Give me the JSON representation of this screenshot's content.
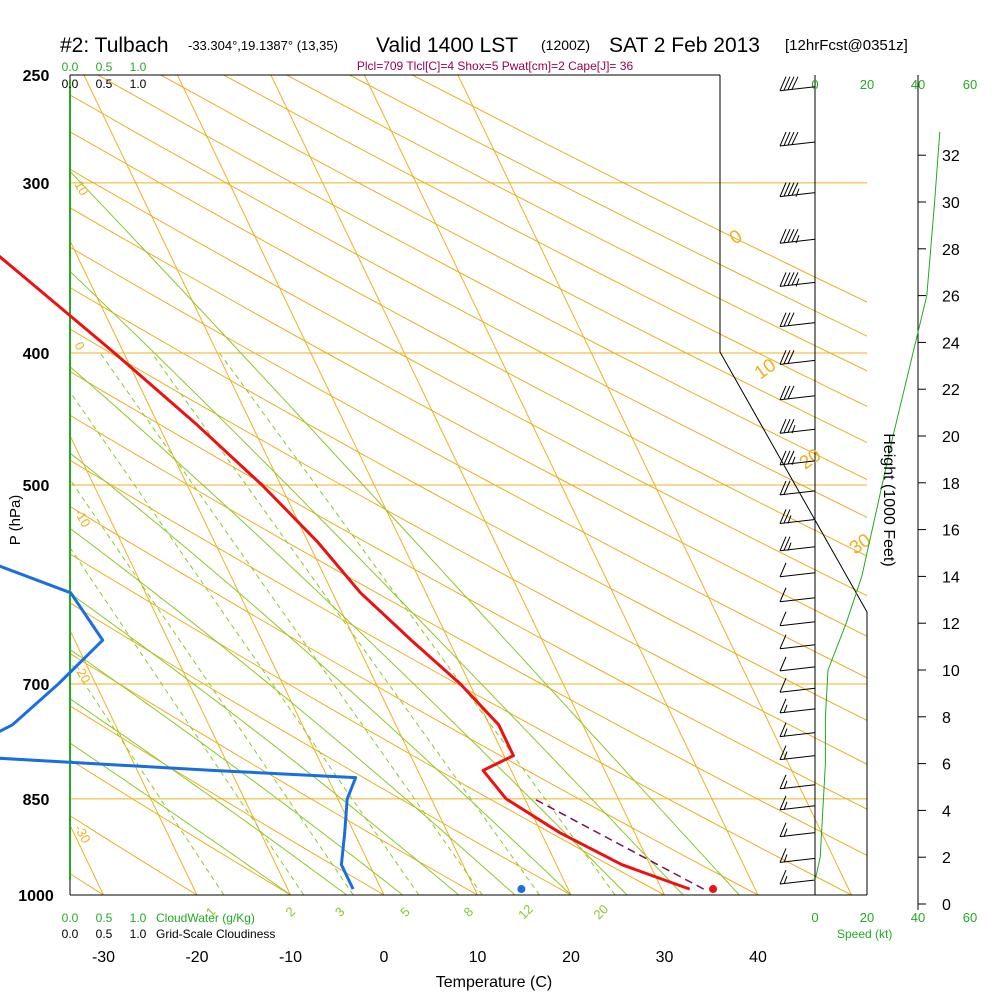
{
  "header": {
    "station": "#2: Tulbach",
    "coords": "-33.304°,19.1387° (13,35)",
    "valid": "Valid 1400 LST",
    "utc": "(1200Z)",
    "date": "SAT 2 Feb 2013",
    "forecast": "[12hrFcst@0351z]",
    "indices": "Plcl=709 Tlcl[C]=4 Shox=5 Pwat[cm]=2 Cape[J]= 36"
  },
  "colors": {
    "temperature": "#ee1111",
    "dewpoint": "#1a6fe0",
    "isotherm": "#f0b020",
    "dry_adiabat": "#e8b020",
    "moist_adiabat": "#8cc828",
    "mixing_ratio": "#8cc828",
    "cloud_scale": "#22aa22",
    "parcel": "#7a1050",
    "header_sub": "#990055"
  },
  "chart_data": {
    "type": "skew-t",
    "xlabel": "Temperature (C)",
    "ylabel": "P (hPa)",
    "right_label": "Height (1000 Feet)",
    "x_ticks": [
      -30,
      -20,
      -10,
      0,
      10,
      20,
      30,
      40
    ],
    "pressure_ticks": [
      250,
      300,
      400,
      500,
      700,
      850,
      1000
    ],
    "height_ticks": [
      0,
      2,
      4,
      6,
      8,
      10,
      12,
      14,
      16,
      18,
      20,
      22,
      24,
      26,
      28,
      30,
      32
    ],
    "temperature_profile": [
      {
        "p": 255,
        "t": -22
      },
      {
        "p": 300,
        "t": -14
      },
      {
        "p": 350,
        "t": -7
      },
      {
        "p": 400,
        "t": -1
      },
      {
        "p": 450,
        "t": 4
      },
      {
        "p": 500,
        "t": 8
      },
      {
        "p": 550,
        "t": 11
      },
      {
        "p": 600,
        "t": 13
      },
      {
        "p": 650,
        "t": 16
      },
      {
        "p": 700,
        "t": 19
      },
      {
        "p": 750,
        "t": 21
      },
      {
        "p": 790,
        "t": 21
      },
      {
        "p": 810,
        "t": 17
      },
      {
        "p": 850,
        "t": 18
      },
      {
        "p": 900,
        "t": 22
      },
      {
        "p": 950,
        "t": 27
      },
      {
        "p": 990,
        "t": 33
      }
    ],
    "dewpoint_profile": [
      {
        "p": 255,
        "t": -42
      },
      {
        "p": 300,
        "t": -45
      },
      {
        "p": 350,
        "t": -50
      },
      {
        "p": 400,
        "t": -57
      },
      {
        "p": 450,
        "t": -56
      },
      {
        "p": 500,
        "t": -44
      },
      {
        "p": 550,
        "t": -30
      },
      {
        "p": 600,
        "t": -18
      },
      {
        "p": 650,
        "t": -17
      },
      {
        "p": 700,
        "t": -24
      },
      {
        "p": 750,
        "t": -31
      },
      {
        "p": 790,
        "t": -39
      },
      {
        "p": 810,
        "t": -12
      },
      {
        "p": 820,
        "t": 3
      },
      {
        "p": 850,
        "t": 1
      },
      {
        "p": 900,
        "t": -1
      },
      {
        "p": 950,
        "t": -3
      },
      {
        "p": 990,
        "t": -3
      }
    ],
    "surface_temperature": 35.5,
    "surface_dewpoint": 15,
    "surface_pressure": 990,
    "parcel_path": [
      {
        "p": 990,
        "t": 34.5
      },
      {
        "p": 850,
        "t": 21
      }
    ],
    "cloud_axis_top": [
      "0.0",
      "0.5",
      "1.0"
    ],
    "cloud_axis_bottom": [
      "0.0",
      "0.5",
      "1.0"
    ],
    "cloudwater_label": "CloudWater (g/Kg)",
    "cloudiness_label": "Grid-Scale Cloudiness",
    "speed_label": "Speed (kt)",
    "speed_ticks": [
      "0",
      "20",
      "40",
      "60"
    ],
    "mixing_ratio_labels": [
      "1",
      "2",
      "3",
      "5",
      "8",
      "12",
      "20"
    ],
    "isotherm_labels": [
      "10",
      "0",
      "-10",
      "-20",
      "-30"
    ],
    "moist_labels": [
      "0",
      "10",
      "20",
      "30"
    ],
    "wind_speed_profile": [
      {
        "h": 1,
        "s": 0
      },
      {
        "h": 2,
        "s": 2
      },
      {
        "h": 4,
        "s": 3
      },
      {
        "h": 6,
        "s": 4
      },
      {
        "h": 8,
        "s": 4
      },
      {
        "h": 10,
        "s": 5
      },
      {
        "h": 12,
        "s": 12
      },
      {
        "h": 14,
        "s": 18
      },
      {
        "h": 20,
        "s": 30
      },
      {
        "h": 26,
        "s": 43
      },
      {
        "h": 30,
        "s": 46
      },
      {
        "h": 33,
        "s": 48
      }
    ],
    "wind_barbs": [
      {
        "p": 255,
        "spd": 40
      },
      {
        "p": 280,
        "spd": 40
      },
      {
        "p": 305,
        "spd": 35
      },
      {
        "p": 330,
        "spd": 35
      },
      {
        "p": 355,
        "spd": 35
      },
      {
        "p": 380,
        "spd": 30
      },
      {
        "p": 405,
        "spd": 30
      },
      {
        "p": 430,
        "spd": 30
      },
      {
        "p": 455,
        "spd": 25
      },
      {
        "p": 480,
        "spd": 25
      },
      {
        "p": 505,
        "spd": 20
      },
      {
        "p": 530,
        "spd": 15
      },
      {
        "p": 555,
        "spd": 15
      },
      {
        "p": 580,
        "spd": 10
      },
      {
        "p": 605,
        "spd": 10
      },
      {
        "p": 630,
        "spd": 10
      },
      {
        "p": 655,
        "spd": 10
      },
      {
        "p": 680,
        "spd": 10
      },
      {
        "p": 705,
        "spd": 10
      },
      {
        "p": 730,
        "spd": 5
      },
      {
        "p": 760,
        "spd": 5
      },
      {
        "p": 790,
        "spd": 5
      },
      {
        "p": 830,
        "spd": 5
      },
      {
        "p": 860,
        "spd": 5
      },
      {
        "p": 900,
        "spd": 5
      },
      {
        "p": 940,
        "spd": 5
      },
      {
        "p": 975,
        "spd": 5
      }
    ]
  }
}
